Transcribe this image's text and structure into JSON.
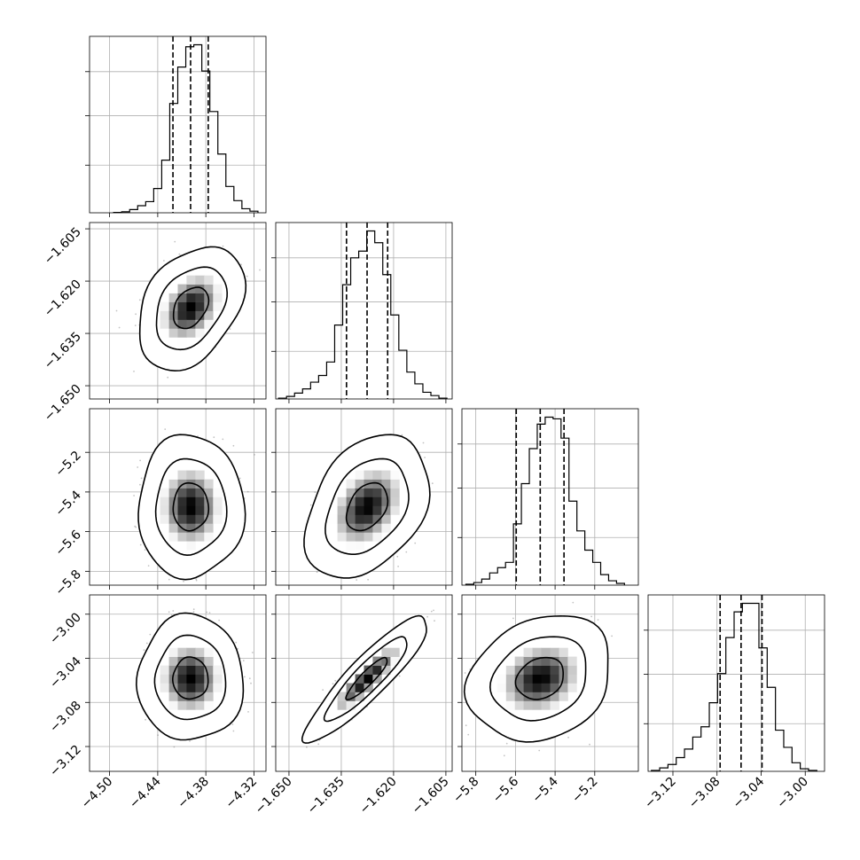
{
  "chart_data": {
    "type": "corner",
    "parameters": [
      {
        "axis_range": [
          -4.525,
          -4.305
        ],
        "ticks": [
          -4.5,
          -4.44,
          -4.38,
          -4.32
        ],
        "tick_labels": [
          "−4.50",
          "−4.44",
          "−4.38",
          "−4.32"
        ],
        "quantiles": [
          -4.421,
          -4.399,
          -4.377
        ],
        "hist_edges": [
          -4.495,
          -4.485,
          -4.475,
          -4.465,
          -4.455,
          -4.445,
          -4.435,
          -4.425,
          -4.415,
          -4.405,
          -4.395,
          -4.385,
          -4.375,
          -4.365,
          -4.355,
          -4.345,
          -4.335,
          -4.325,
          -4.315
        ],
        "hist_counts": [
          0.2,
          0.5,
          1.6,
          3.5,
          5.5,
          12,
          26,
          54,
          72,
          82,
          83,
          70,
          50,
          29,
          13,
          6,
          2,
          0.8
        ]
      },
      {
        "axis_range": [
          -1.6538,
          -1.6032
        ],
        "ticks": [
          -1.65,
          -1.635,
          -1.62,
          -1.605
        ],
        "tick_labels": [
          "−1.650",
          "−1.635",
          "−1.620",
          "−1.605"
        ],
        "quantiles": [
          -1.6335,
          -1.6276,
          -1.6217
        ],
        "hist_edges": [
          -1.653,
          -1.6507,
          -1.6484,
          -1.6461,
          -1.6438,
          -1.6415,
          -1.6392,
          -1.6369,
          -1.6346,
          -1.6323,
          -1.63,
          -1.6277,
          -1.6254,
          -1.6231,
          -1.6208,
          -1.6185,
          -1.6162,
          -1.6139,
          -1.6116,
          -1.6093,
          -1.607,
          -1.6047
        ],
        "hist_counts": [
          0.5,
          1.5,
          3.5,
          6,
          10,
          14,
          22,
          44,
          68,
          84,
          88,
          100,
          93,
          74,
          50,
          29,
          16,
          9,
          4,
          2,
          0.5
        ]
      },
      {
        "axis_range": [
          -5.87,
          -4.98
        ],
        "ticks": [
          -5.8,
          -5.6,
          -5.4,
          -5.2
        ],
        "tick_labels": [
          "−5.8",
          "−5.6",
          "−5.4",
          "−5.2"
        ],
        "quantiles": [
          -5.596,
          -5.475,
          -5.355
        ],
        "hist_edges": [
          -5.85,
          -5.81,
          -5.77,
          -5.73,
          -5.69,
          -5.65,
          -5.61,
          -5.57,
          -5.53,
          -5.49,
          -5.45,
          -5.41,
          -5.37,
          -5.33,
          -5.29,
          -5.25,
          -5.21,
          -5.17,
          -5.13,
          -5.09,
          -5.05
        ],
        "hist_counts": [
          0.5,
          1.5,
          3.5,
          7,
          10,
          13,
          35,
          58,
          78,
          92,
          96,
          95,
          84,
          48,
          31,
          20,
          13,
          6,
          2.5,
          1
        ]
      },
      {
        "axis_range": [
          -3.1425,
          -2.9825
        ],
        "ticks": [
          -3.12,
          -3.08,
          -3.04,
          -3.0
        ],
        "tick_labels": [
          "−3.12",
          "−3.08",
          "−3.04",
          "−3.00"
        ],
        "quantiles": [
          -3.0772,
          -3.0582,
          -3.0392
        ],
        "hist_edges": [
          -3.1395,
          -3.132,
          -3.1245,
          -3.117,
          -3.1095,
          -3.102,
          -3.0945,
          -3.087,
          -3.0795,
          -3.072,
          -3.0645,
          -3.057,
          -3.0495,
          -3.042,
          -3.0345,
          -3.027,
          -3.0195,
          -3.012,
          -3.0045,
          -2.997,
          -2.9895
        ],
        "hist_counts": [
          0.5,
          2,
          4,
          8,
          13,
          20,
          26,
          40,
          57,
          78,
          93,
          98,
          98,
          72,
          49,
          24,
          14,
          5,
          1.5,
          0.5
        ]
      }
    ],
    "pair_correlations": {
      "1-0": 0.35,
      "2-0": 0.0,
      "2-1": 0.35,
      "3-0": 0.0,
      "3-1": 0.9,
      "3-2": 0.2
    },
    "quantile_levels": [
      0.16,
      0.5,
      0.84
    ],
    "grid": true
  }
}
